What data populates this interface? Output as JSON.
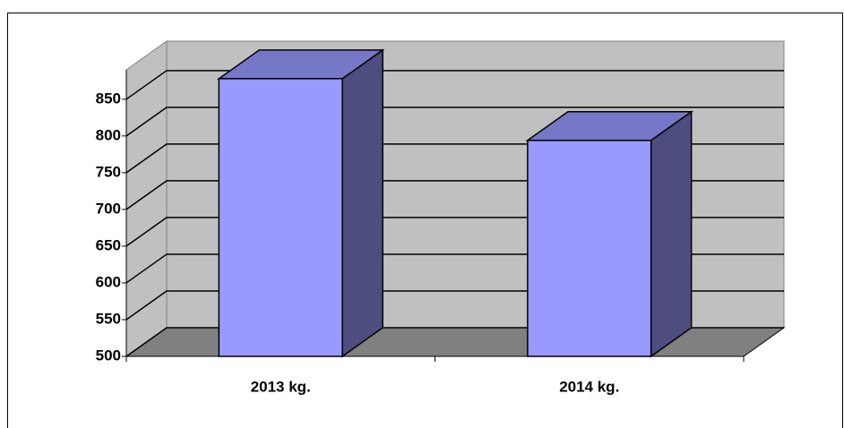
{
  "chart_data": {
    "type": "bar3d",
    "categories": [
      "2013 kg.",
      "2014 kg."
    ],
    "values": [
      878,
      794
    ],
    "color": "#9999ff",
    "ylim": [
      500,
      890
    ],
    "yticks": [
      500,
      550,
      600,
      650,
      700,
      750,
      800,
      850
    ],
    "grid": true
  }
}
